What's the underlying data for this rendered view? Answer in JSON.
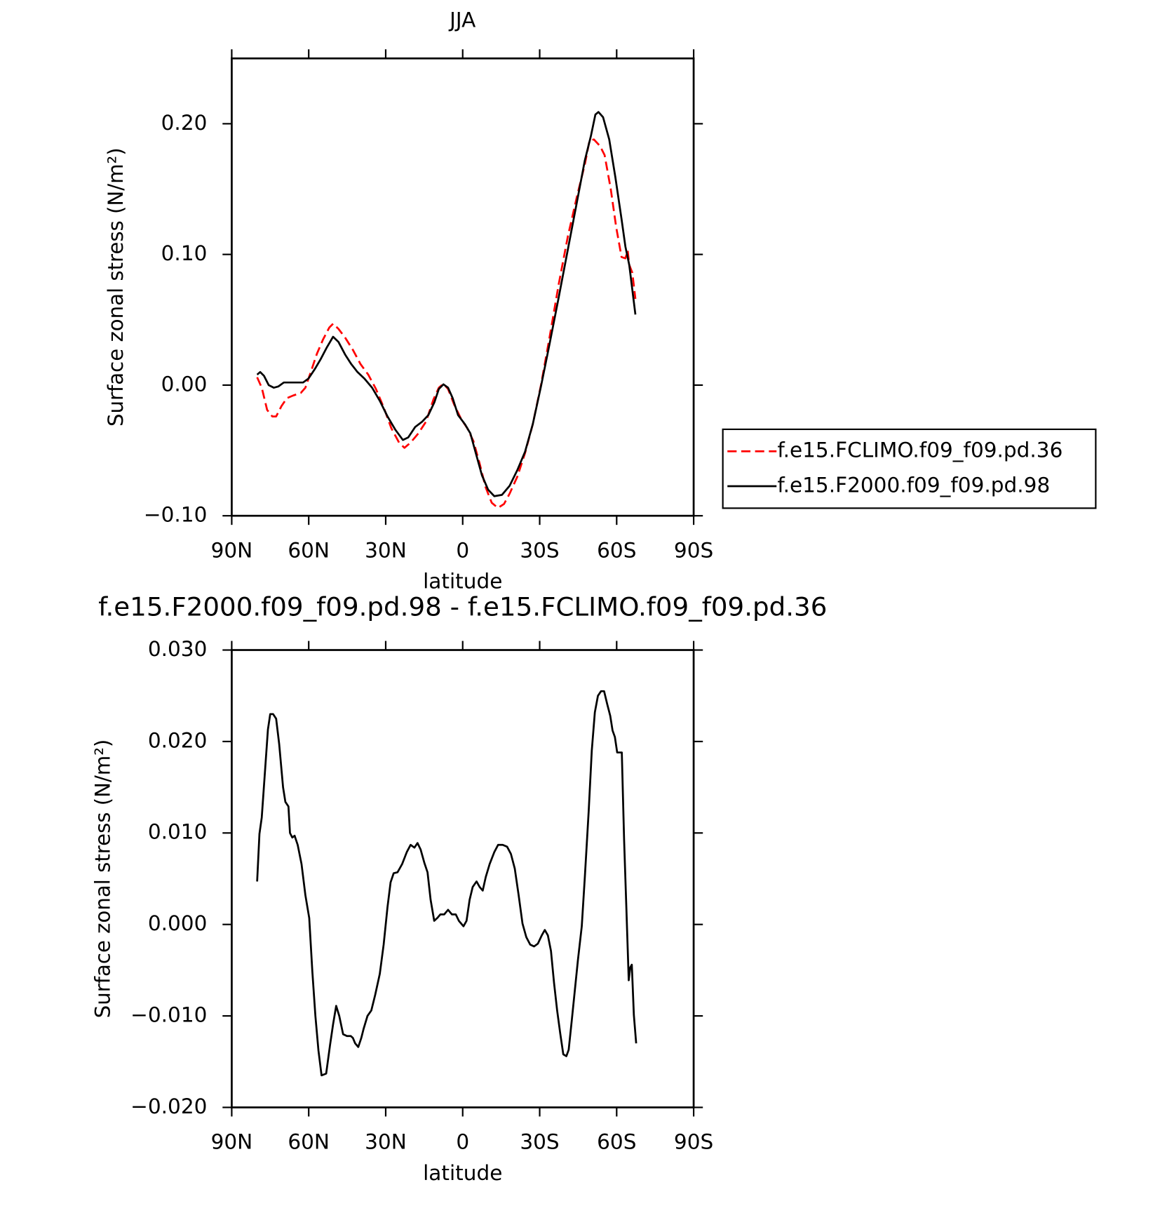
{
  "chart_data": [
    {
      "type": "line",
      "title": "JJA",
      "xlabel": "latitude",
      "ylabel": "Surface zonal stress (N/m²)",
      "xlim": [
        90,
        -90
      ],
      "xticks": [
        {
          "value": 90,
          "label": "90N"
        },
        {
          "value": 60,
          "label": "60N"
        },
        {
          "value": 30,
          "label": "30N"
        },
        0,
        {
          "value": -30,
          "label": "30S"
        },
        {
          "value": -60,
          "label": "60S"
        },
        {
          "value": -90,
          "label": "90S"
        }
      ],
      "ylim": [
        -0.1,
        0.25
      ],
      "yticks": [
        {
          "value": -0.1,
          "label": "−0.10"
        },
        {
          "value": 0,
          "label": "0.00"
        },
        {
          "value": 0.1,
          "label": "0.10"
        },
        {
          "value": 0.2,
          "label": "0.20"
        }
      ],
      "legend": "right",
      "series": [
        {
          "name": "f.e15.FCLIMO.f09_f09.pd.36",
          "color": "#ff0000",
          "dash": "dashed",
          "x": [
            80.1,
            78.3,
            76.2,
            74.2,
            72.7,
            70.6,
            68.5,
            66.1,
            63.1,
            61.3,
            59.2,
            56.8,
            54.4,
            52.0,
            50.5,
            48.4,
            45.7,
            42.8,
            39.8,
            36.8,
            33.8,
            30.8,
            27.8,
            24.8,
            22.7,
            20.3,
            17.3,
            14.3,
            11.4,
            9.3,
            7.5,
            5.7,
            3.3,
            0.6,
            -1.8,
            -4.2,
            -6.6,
            -8.9,
            -11.3,
            -13.7,
            -16.1,
            -18.3,
            -21.3,
            -24.3,
            -27.3,
            -30.5,
            -33.8,
            -37.4,
            -41.0,
            -44.6,
            -47.6,
            -49.4,
            -51.1,
            -53.5,
            -55.3,
            -57.7,
            -59.8,
            -61.9,
            -63.4,
            -64.3,
            -64.9,
            -66.1,
            -67.3
          ],
          "values": [
            0.006,
            -0.002,
            -0.019,
            -0.024,
            -0.024,
            -0.016,
            -0.01,
            -0.008,
            -0.006,
            -0.002,
            0.01,
            0.024,
            0.035,
            0.044,
            0.047,
            0.043,
            0.036,
            0.027,
            0.016,
            0.008,
            -0.003,
            -0.017,
            -0.033,
            -0.044,
            -0.048,
            -0.044,
            -0.037,
            -0.028,
            -0.011,
            -0.002,
            0.001,
            -0.003,
            -0.015,
            -0.026,
            -0.033,
            -0.043,
            -0.06,
            -0.078,
            -0.09,
            -0.094,
            -0.091,
            -0.083,
            -0.07,
            -0.052,
            -0.03,
            0.0,
            0.036,
            0.077,
            0.114,
            0.145,
            0.169,
            0.187,
            0.188,
            0.183,
            0.176,
            0.15,
            0.121,
            0.098,
            0.097,
            0.103,
            0.092,
            0.086,
            0.066
          ]
        },
        {
          "name": "f.e15.F2000.f09_f09.pd.98",
          "color": "#000000",
          "dash": "solid",
          "x": [
            80.1,
            78.9,
            77.4,
            75.6,
            73.6,
            71.8,
            69.7,
            67.9,
            65.2,
            62.2,
            60.1,
            57.7,
            55.3,
            52.9,
            50.5,
            48.4,
            45.7,
            43.4,
            41.0,
            38.3,
            35.3,
            32.3,
            29.3,
            26.3,
            23.3,
            21.2,
            18.5,
            15.8,
            13.4,
            11.0,
            9.3,
            7.5,
            5.7,
            3.9,
            1.8,
            -0.9,
            -3.0,
            -5.1,
            -7.5,
            -9.9,
            -12.3,
            -15.3,
            -18.3,
            -21.3,
            -24.3,
            -27.3,
            -30.5,
            -33.8,
            -37.4,
            -41.0,
            -44.6,
            -47.6,
            -50.0,
            -51.7,
            -52.9,
            -54.7,
            -57.1,
            -59.5,
            -61.9,
            -63.4,
            -64.9,
            -66.1,
            -67.3
          ],
          "values": [
            0.008,
            0.01,
            0.007,
            0.0,
            -0.002,
            -0.001,
            0.002,
            0.002,
            0.002,
            0.002,
            0.005,
            0.012,
            0.02,
            0.029,
            0.037,
            0.033,
            0.023,
            0.016,
            0.01,
            0.005,
            -0.002,
            -0.012,
            -0.024,
            -0.034,
            -0.042,
            -0.04,
            -0.032,
            -0.028,
            -0.023,
            -0.013,
            -0.003,
            0.0006,
            -0.002,
            -0.01,
            -0.023,
            -0.03,
            -0.037,
            -0.052,
            -0.069,
            -0.08,
            -0.085,
            -0.084,
            -0.077,
            -0.065,
            -0.051,
            -0.03,
            -0.001,
            0.031,
            0.067,
            0.104,
            0.141,
            0.172,
            0.191,
            0.207,
            0.209,
            0.205,
            0.188,
            0.159,
            0.127,
            0.106,
            0.092,
            0.073,
            0.054
          ]
        }
      ]
    },
    {
      "type": "line",
      "title": "f.e15.F2000.f09_f09.pd.98 - f.e15.FCLIMO.f09_f09.pd.36",
      "xlabel": "latitude",
      "ylabel": "Surface zonal stress (N/m²)",
      "xlim": [
        90,
        -90
      ],
      "xticks": [
        {
          "value": 90,
          "label": "90N"
        },
        {
          "value": 60,
          "label": "60N"
        },
        {
          "value": 30,
          "label": "30N"
        },
        0,
        {
          "value": -30,
          "label": "30S"
        },
        {
          "value": -60,
          "label": "60S"
        },
        {
          "value": -90,
          "label": "90S"
        }
      ],
      "ylim": [
        -0.02,
        0.03
      ],
      "yticks": [
        {
          "value": -0.02,
          "label": "−0.020"
        },
        {
          "value": -0.01,
          "label": "−0.010"
        },
        {
          "value": 0,
          "label": "0.000"
        },
        {
          "value": 0.01,
          "label": "0.010"
        },
        {
          "value": 0.02,
          "label": "0.020"
        },
        {
          "value": 0.03,
          "label": "0.030"
        }
      ],
      "color": "#000000",
      "x": [
        80.1,
        79.2,
        78.3,
        77.1,
        75.9,
        75.0,
        73.9,
        72.7,
        71.5,
        70.0,
        69.1,
        67.9,
        67.3,
        66.4,
        65.5,
        64.3,
        62.8,
        61.3,
        59.8,
        58.6,
        57.4,
        56.2,
        55.0,
        53.2,
        51.7,
        50.5,
        49.3,
        48.1,
        46.6,
        45.1,
        43.6,
        42.8,
        41.9,
        40.7,
        39.5,
        38.6,
        37.1,
        35.6,
        34.1,
        32.3,
        30.8,
        29.3,
        28.1,
        26.9,
        25.4,
        23.6,
        21.8,
        20.3,
        18.8,
        17.6,
        16.4,
        14.9,
        13.7,
        12.5,
        11.1,
        9.9,
        8.7,
        7.2,
        5.7,
        4.2,
        2.7,
        1.5,
        -0.3,
        -1.5,
        -2.7,
        -3.9,
        -5.4,
        -6.6,
        -7.8,
        -9.0,
        -10.5,
        -12.3,
        -13.8,
        -15.6,
        -17.3,
        -18.8,
        -20.3,
        -21.8,
        -23.3,
        -24.8,
        -26.3,
        -27.8,
        -29.3,
        -30.8,
        -32.0,
        -33.2,
        -34.4,
        -35.6,
        -36.8,
        -38.0,
        -39.2,
        -40.4,
        -41.3,
        -42.5,
        -43.7,
        -44.9,
        -46.4,
        -47.6,
        -49.1,
        -50.3,
        -51.5,
        -52.7,
        -53.9,
        -55.1,
        -56.3,
        -57.5,
        -58.4,
        -59.3,
        -60.2,
        -61.1,
        -62.0,
        -62.9,
        -63.8,
        -64.7,
        -65.3,
        -65.9,
        -66.7,
        -67.6
      ],
      "values": [
        0.0047,
        0.0099,
        0.0117,
        0.0165,
        0.0213,
        0.023,
        0.023,
        0.0225,
        0.0197,
        0.015,
        0.0134,
        0.0129,
        0.01,
        0.0095,
        0.0097,
        0.0087,
        0.0066,
        0.0032,
        0.0007,
        -0.0051,
        -0.01,
        -0.0138,
        -0.0165,
        -0.0163,
        -0.0132,
        -0.0109,
        -0.0089,
        -0.01,
        -0.012,
        -0.0122,
        -0.0122,
        -0.0124,
        -0.013,
        -0.0134,
        -0.0124,
        -0.0114,
        -0.01,
        -0.0094,
        -0.0077,
        -0.0054,
        -0.0022,
        0.0019,
        0.0046,
        0.0056,
        0.0057,
        0.0066,
        0.0079,
        0.0087,
        0.0084,
        0.0089,
        0.0082,
        0.0067,
        0.0057,
        0.0027,
        0.0004,
        0.0007,
        0.0011,
        0.0011,
        0.0016,
        0.0011,
        0.0011,
        0.0004,
        -0.0002,
        0.0004,
        0.0027,
        0.0041,
        0.0047,
        0.0041,
        0.0037,
        0.0052,
        0.0066,
        0.0079,
        0.0087,
        0.0087,
        0.0085,
        0.0077,
        0.0061,
        0.0032,
        0.0001,
        -0.0014,
        -0.0022,
        -0.0024,
        -0.0021,
        -0.0012,
        -0.0006,
        -0.0012,
        -0.0029,
        -0.0064,
        -0.0094,
        -0.0119,
        -0.0142,
        -0.0144,
        -0.0137,
        -0.0105,
        -0.0072,
        -0.0039,
        -0.0002,
        0.0052,
        0.0124,
        0.019,
        0.0232,
        0.025,
        0.0255,
        0.0255,
        0.0241,
        0.0228,
        0.0212,
        0.0205,
        0.0188,
        0.0188,
        0.0188,
        0.0092,
        0.0016,
        -0.0061,
        -0.0047,
        -0.0044,
        -0.0099,
        -0.013
      ]
    }
  ]
}
